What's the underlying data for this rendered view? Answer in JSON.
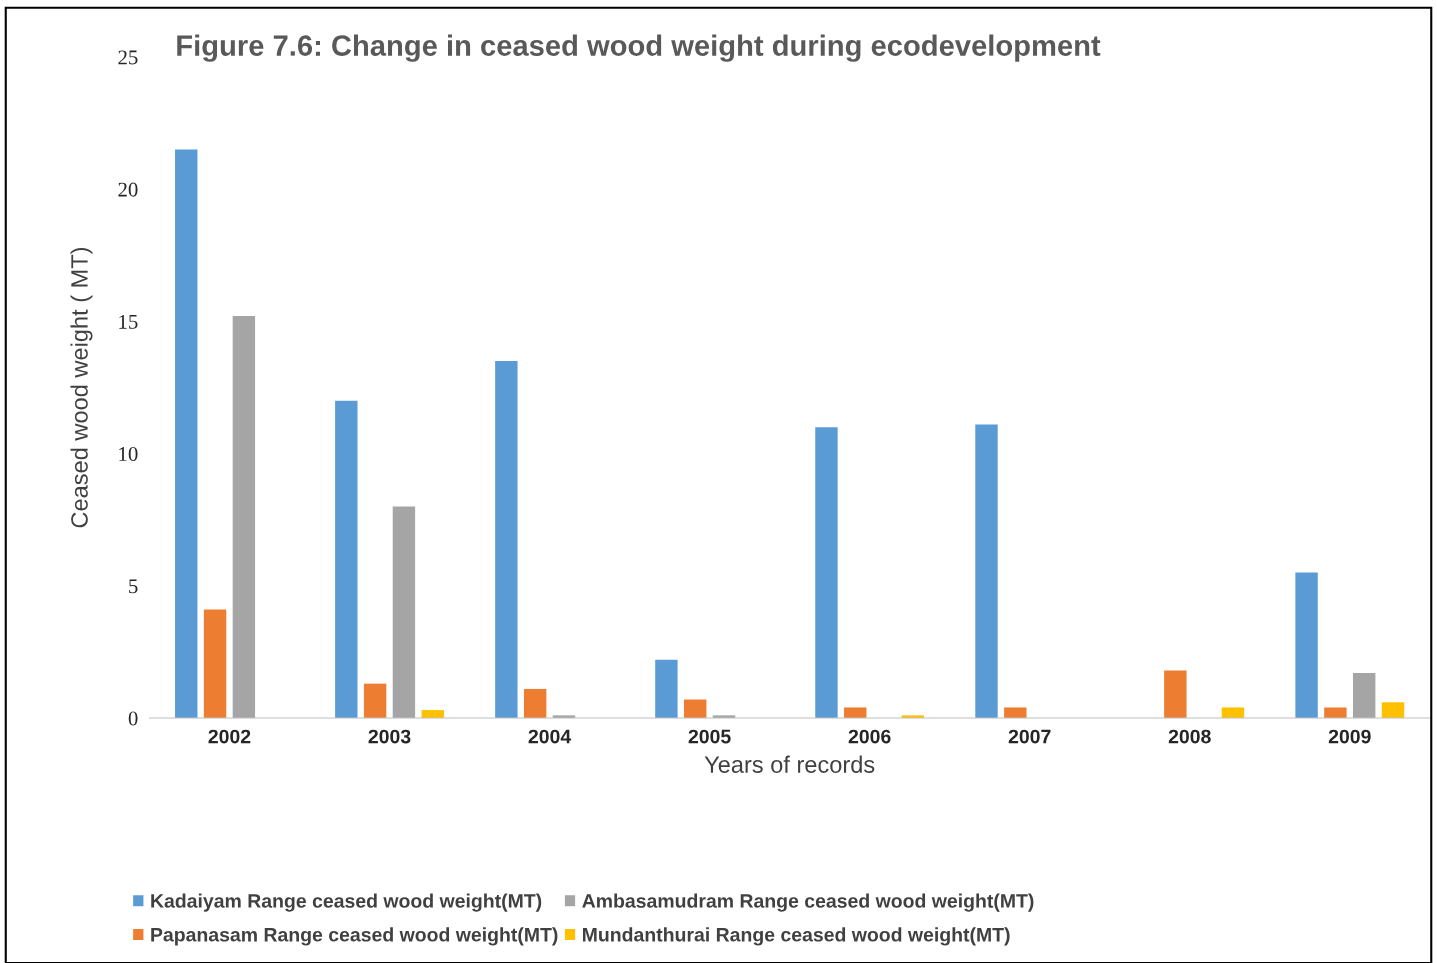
{
  "chart_data": {
    "type": "bar",
    "title": "Figure 7.6: Change in ceased wood weight during ecodevelopment",
    "xlabel": "Years of records",
    "ylabel": "Ceased wood weight ( MT)",
    "categories": [
      "2002",
      "2003",
      "2004",
      "2005",
      "2006",
      "2007",
      "2008",
      "2009"
    ],
    "series": [
      {
        "name": "Kadaiyam Range ceased wood weight(MT)",
        "color": "#5b9bd5",
        "values": [
          21.5,
          12.0,
          13.5,
          2.2,
          11.0,
          11.1,
          null,
          5.5
        ]
      },
      {
        "name": "Papanasam Range ceased wood weight(MT)",
        "color": "#ed7d31",
        "values": [
          4.1,
          1.3,
          1.1,
          0.7,
          0.4,
          0.4,
          1.8,
          0.4
        ]
      },
      {
        "name": "Ambasamudram Range ceased wood weight(MT)",
        "color": "#a5a5a5",
        "values": [
          15.2,
          8.0,
          0.1,
          0.1,
          null,
          null,
          null,
          1.7
        ]
      },
      {
        "name": "Mundanthurai Range ceased wood weight(MT)",
        "color": "#ffc000",
        "values": [
          null,
          0.3,
          null,
          null,
          0.1,
          null,
          0.4,
          0.6
        ]
      }
    ],
    "ylim": [
      0,
      25
    ],
    "yticks": [
      0,
      5,
      10,
      15,
      20,
      25
    ],
    "grid": false,
    "legend": "bottom"
  }
}
